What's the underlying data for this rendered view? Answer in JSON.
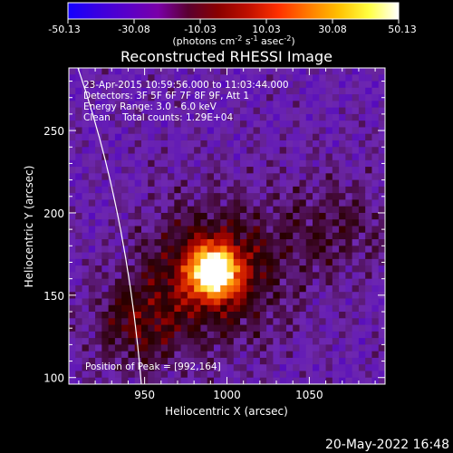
{
  "colorbar": {
    "ticks": [
      "-50.13",
      "-30.08",
      "-10.03",
      "10.03",
      "30.08",
      "50.13"
    ],
    "unit_parts": [
      "(photons cm",
      "-2",
      " s",
      "-1",
      " asec",
      "-2",
      ")"
    ],
    "stops": [
      "#1400ff",
      "#3a00e0",
      "#5a00c8",
      "#7a00a8",
      "#5a0030",
      "#8a0000",
      "#c01000",
      "#ff3000",
      "#ff7a00",
      "#ffc000",
      "#ffff40",
      "#ffffff"
    ]
  },
  "chart_data": {
    "type": "heatmap",
    "title": "Reconstructed RHESSI Image",
    "xlabel": "Heliocentric X (arcsec)",
    "ylabel": "Heliocentric Y (arcsec)",
    "xlim": [
      904,
      1096
    ],
    "ylim": [
      96,
      288
    ],
    "x_ticks": [
      950,
      1000,
      1050
    ],
    "y_ticks": [
      100,
      150,
      200,
      250
    ],
    "colorbar_range": [
      -50.13,
      50.13
    ],
    "peak": [
      992,
      164
    ],
    "info_lines": [
      "23-Apr-2015 10:59:56.000 to 11:03:44.000",
      "Detectors: 3F 5F 6F 7F 8F 9F, Att 1",
      "Energy Range: 3.0 - 6.0 keV",
      "Clean    Total counts: 1.29E+04"
    ],
    "peak_label": "Position of Peak = [992,164]"
  },
  "footer": {
    "date": "20-May-2022 16:48"
  }
}
